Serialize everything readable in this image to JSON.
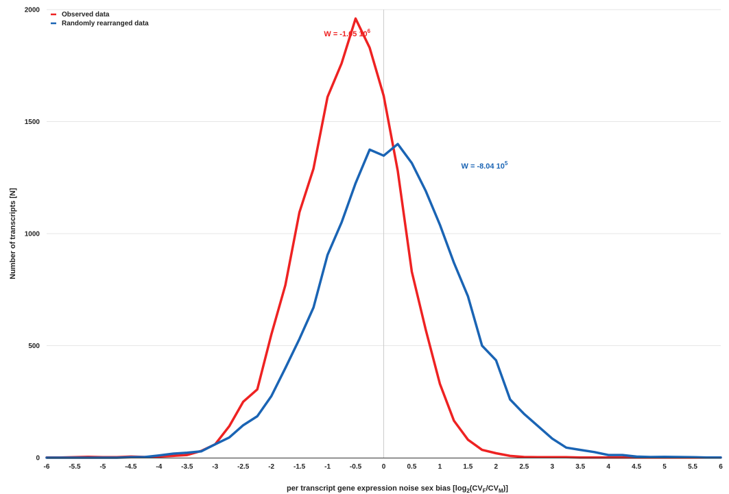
{
  "chart_data": {
    "type": "line",
    "xlabel": "per transcript gene expression noise sex bias [log",
    "xlabel_parts": {
      "prefix": "per transcript gene expression noise sex bias [log",
      "log_sub": "2",
      "open": "(CV",
      "sub_f": "F",
      "mid": "/CV",
      "sub_m": "M",
      "close": ")]"
    },
    "ylabel": "Number of transcripts [N]",
    "xlim": [
      -6,
      6
    ],
    "ylim": [
      0,
      2000
    ],
    "x_ticks": [
      -6,
      -5.5,
      -5,
      -4.5,
      -4,
      -3.5,
      -3,
      -2.5,
      -2,
      -1.5,
      -1,
      -0.5,
      0,
      0.5,
      1,
      1.5,
      2,
      2.5,
      3,
      3.5,
      4,
      4.5,
      5,
      5.5,
      6
    ],
    "x_tick_labels": [
      "-6",
      "-5.5",
      "-5",
      "-4.5",
      "-4",
      "-3.5",
      "-3",
      "-2.5",
      "-2",
      "-1.5",
      "-1",
      "-0.5",
      "0",
      "0.5",
      "1",
      "1.5",
      "2",
      "2.5",
      "3",
      "3.5",
      "4",
      "4.5",
      "5",
      "5.5",
      "6"
    ],
    "y_ticks": [
      0,
      500,
      1000,
      1500,
      2000
    ],
    "y_tick_labels": [
      "0",
      "500",
      "1000",
      "1500",
      "2000"
    ],
    "grid": {
      "horizontal": true,
      "vertical_at_zero": true
    },
    "legend": {
      "placement": "top-left"
    },
    "x": [
      -6,
      -5.75,
      -5.5,
      -5.25,
      -5,
      -4.75,
      -4.5,
      -4.25,
      -4,
      -3.75,
      -3.5,
      -3.25,
      -3,
      -2.75,
      -2.5,
      -2.25,
      -2,
      -1.75,
      -1.5,
      -1.25,
      -1,
      -0.75,
      -0.5,
      -0.25,
      0,
      0.25,
      0.5,
      0.75,
      1,
      1.25,
      1.5,
      1.75,
      2,
      2.25,
      2.5,
      2.75,
      3,
      3.25,
      3.5,
      3.75,
      4,
      4.25,
      4.5,
      4.75,
      5,
      5.25,
      5.5,
      5.75,
      6
    ],
    "series": [
      {
        "name": "Observed data",
        "color": "#ee2222",
        "values": [
          1,
          1,
          2,
          4,
          2,
          2,
          5,
          3,
          5,
          8,
          12,
          30,
          60,
          140,
          250,
          305,
          550,
          770,
          1095,
          1290,
          1610,
          1760,
          1960,
          1830,
          1615,
          1280,
          830,
          570,
          330,
          165,
          80,
          35,
          20,
          8,
          3,
          2,
          2,
          2,
          1,
          1,
          1,
          1,
          1,
          1,
          1,
          1,
          1,
          1,
          1
        ]
      },
      {
        "name": "Randomly rearranged data",
        "color": "#1a64b4",
        "values": [
          0,
          0,
          0,
          0,
          0,
          0,
          2,
          3,
          10,
          18,
          22,
          28,
          60,
          90,
          145,
          185,
          275,
          400,
          530,
          670,
          905,
          1050,
          1225,
          1375,
          1348,
          1400,
          1315,
          1190,
          1040,
          870,
          720,
          500,
          435,
          260,
          195,
          140,
          85,
          45,
          35,
          25,
          12,
          12,
          5,
          3,
          4,
          3,
          2,
          1,
          1
        ]
      }
    ],
    "annotations": [
      {
        "base": "W = -1.05 10",
        "sup": "6",
        "color": "#ee2222",
        "at_x": -0.65,
        "at_y": 1880
      },
      {
        "base": "W = -8.04 10",
        "sup": "5",
        "color": "#1a64b4",
        "at_x": 1.38,
        "at_y": 1290
      }
    ]
  }
}
